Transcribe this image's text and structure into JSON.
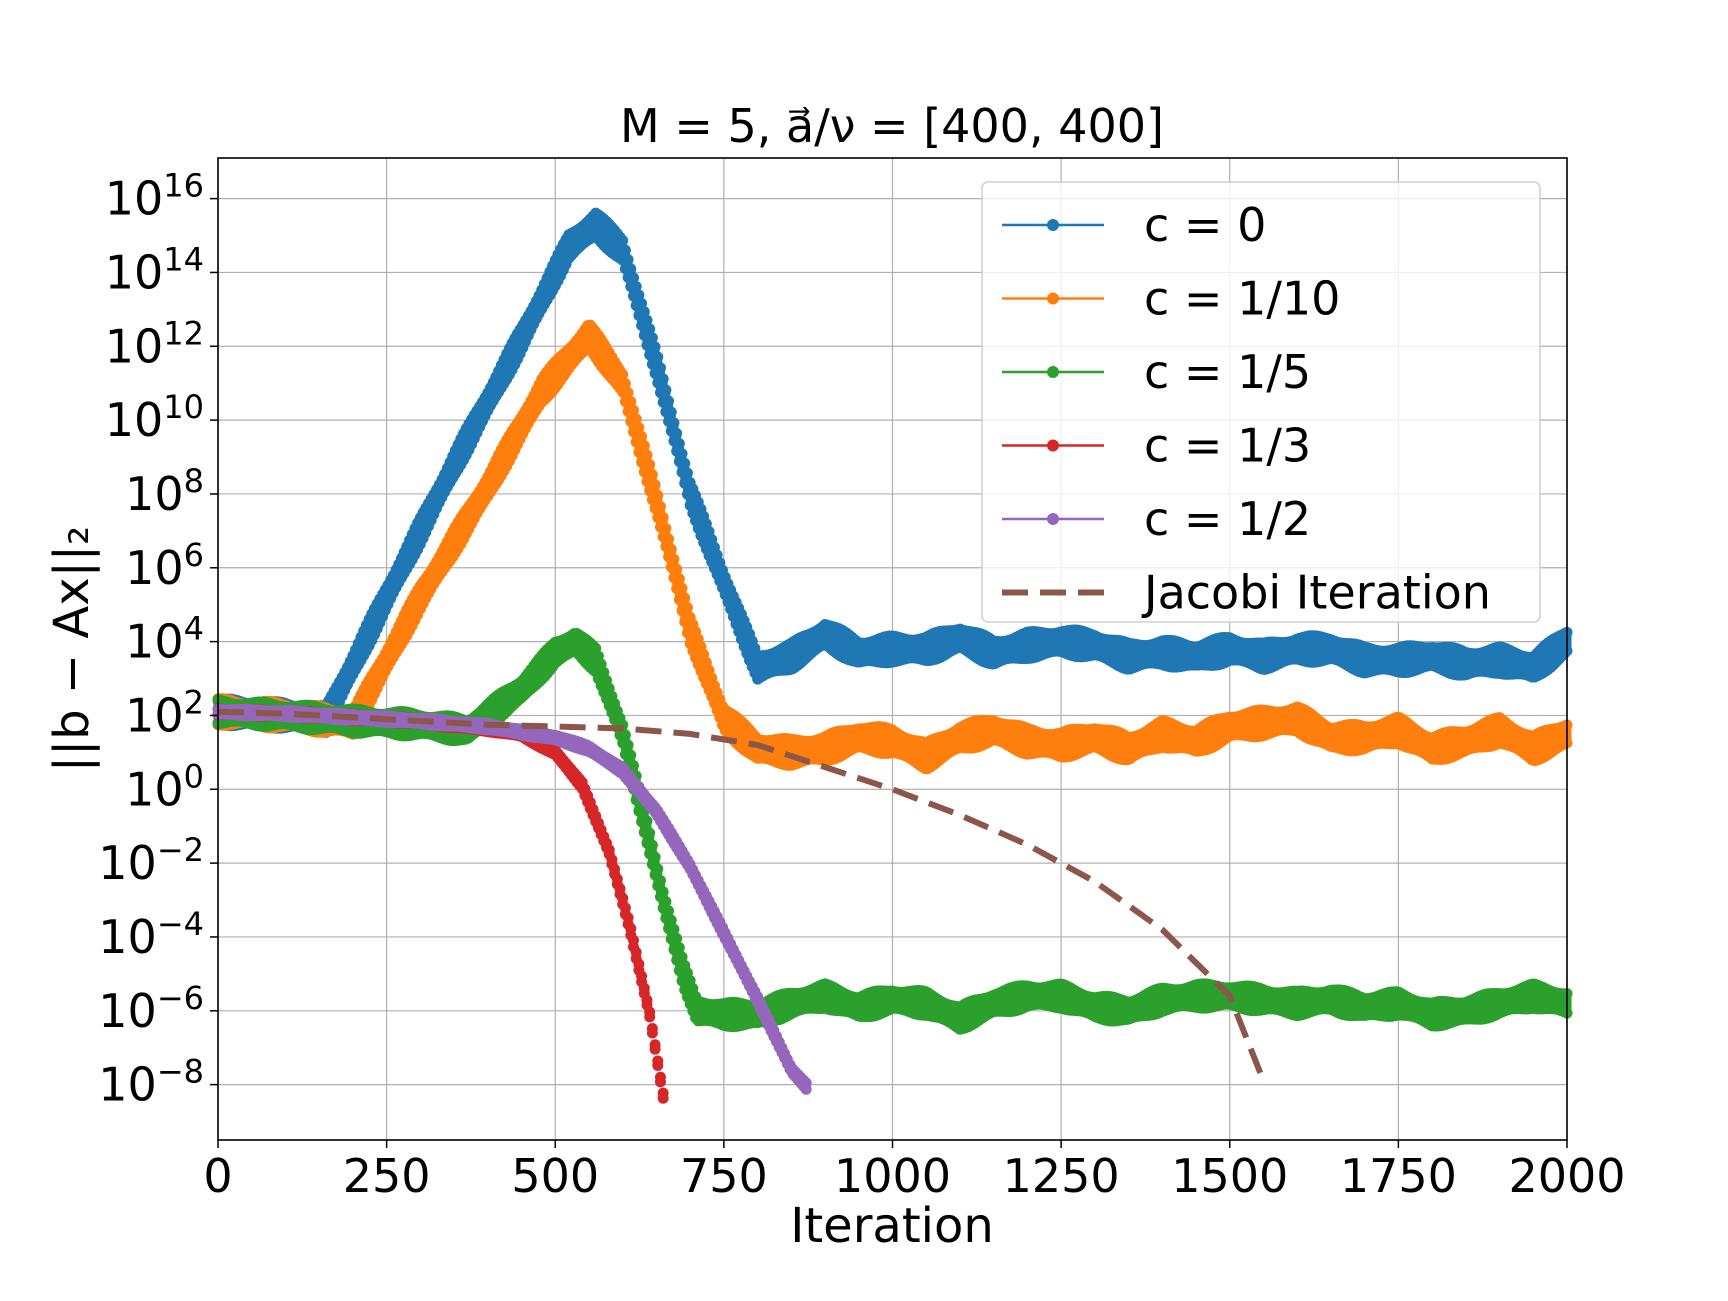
{
  "chart_data": {
    "type": "line",
    "title": "M = 5, a⃗/ν = [400, 400]",
    "xlabel": "Iteration",
    "ylabel": "||b − Ax||₂",
    "xlim": [
      0,
      2000
    ],
    "ylim_exponent": [
      -9.5,
      17.1
    ],
    "y_scale": "log",
    "grid": true,
    "legend_position": "top-right",
    "x_ticks": [
      "0",
      "250",
      "500",
      "750",
      "1000",
      "1250",
      "1500",
      "1750",
      "2000"
    ],
    "y_ticks": [
      {
        "base": "10",
        "exp": "16"
      },
      {
        "base": "10",
        "exp": "14"
      },
      {
        "base": "10",
        "exp": "12"
      },
      {
        "base": "10",
        "exp": "10"
      },
      {
        "base": "10",
        "exp": "8"
      },
      {
        "base": "10",
        "exp": "6"
      },
      {
        "base": "10",
        "exp": "4"
      },
      {
        "base": "10",
        "exp": "2"
      },
      {
        "base": "10",
        "exp": "0"
      },
      {
        "base": "10",
        "exp": "−2"
      },
      {
        "base": "10",
        "exp": "−4"
      },
      {
        "base": "10",
        "exp": "−6"
      },
      {
        "base": "10",
        "exp": "−8"
      }
    ],
    "series": [
      {
        "name": "c = 0",
        "color": "#1f77b4",
        "style": "markers",
        "band_log10": 0.6,
        "points": [
          [
            0,
            2.1
          ],
          [
            100,
            2.0
          ],
          [
            160,
            1.9
          ],
          [
            250,
            5.2
          ],
          [
            350,
            8.8
          ],
          [
            450,
            12.2
          ],
          [
            520,
            14.7
          ],
          [
            560,
            15.3
          ],
          [
            600,
            14.6
          ],
          [
            650,
            11.5
          ],
          [
            700,
            8.0
          ],
          [
            750,
            5.6
          ],
          [
            800,
            3.3
          ],
          [
            850,
            3.6
          ],
          [
            900,
            4.2
          ],
          [
            950,
            3.7
          ],
          [
            1000,
            3.8
          ],
          [
            1050,
            3.8
          ],
          [
            1100,
            4.1
          ],
          [
            1150,
            3.7
          ],
          [
            1200,
            3.9
          ],
          [
            1250,
            4.0
          ],
          [
            1300,
            3.9
          ],
          [
            1350,
            3.6
          ],
          [
            1400,
            3.7
          ],
          [
            1450,
            3.6
          ],
          [
            1500,
            3.8
          ],
          [
            1550,
            3.6
          ],
          [
            1600,
            3.8
          ],
          [
            1650,
            3.8
          ],
          [
            1700,
            3.5
          ],
          [
            1750,
            3.5
          ],
          [
            1800,
            3.6
          ],
          [
            1850,
            3.4
          ],
          [
            1900,
            3.5
          ],
          [
            1950,
            3.3
          ],
          [
            2000,
            4.0
          ]
        ]
      },
      {
        "name": "c = 1/10",
        "color": "#ff7f0e",
        "style": "markers",
        "band_log10": 0.6,
        "points": [
          [
            0,
            2.1
          ],
          [
            100,
            2.0
          ],
          [
            200,
            1.8
          ],
          [
            300,
            5.2
          ],
          [
            400,
            8.2
          ],
          [
            480,
            10.8
          ],
          [
            550,
            12.3
          ],
          [
            600,
            11.0
          ],
          [
            650,
            7.8
          ],
          [
            700,
            4.3
          ],
          [
            750,
            1.9
          ],
          [
            800,
            1.1
          ],
          [
            850,
            1.0
          ],
          [
            900,
            1.1
          ],
          [
            950,
            1.4
          ],
          [
            1000,
            1.3
          ],
          [
            1050,
            0.9
          ],
          [
            1100,
            1.4
          ],
          [
            1150,
            1.6
          ],
          [
            1200,
            1.3
          ],
          [
            1250,
            1.2
          ],
          [
            1300,
            1.4
          ],
          [
            1350,
            1.1
          ],
          [
            1400,
            1.5
          ],
          [
            1450,
            1.3
          ],
          [
            1500,
            1.7
          ],
          [
            1550,
            1.8
          ],
          [
            1600,
            1.9
          ],
          [
            1650,
            1.4
          ],
          [
            1700,
            1.4
          ],
          [
            1750,
            1.6
          ],
          [
            1800,
            1.1
          ],
          [
            1850,
            1.3
          ],
          [
            1900,
            1.6
          ],
          [
            1950,
            1.1
          ],
          [
            2000,
            1.5
          ]
        ]
      },
      {
        "name": "c = 1/5",
        "color": "#2ca02c",
        "style": "markers",
        "band_log10": 0.55,
        "points": [
          [
            0,
            2.1
          ],
          [
            100,
            2.0
          ],
          [
            200,
            1.85
          ],
          [
            300,
            1.75
          ],
          [
            370,
            1.6
          ],
          [
            450,
            2.7
          ],
          [
            500,
            3.7
          ],
          [
            530,
            4.0
          ],
          [
            560,
            3.5
          ],
          [
            600,
            1.5
          ],
          [
            630,
            -0.7
          ],
          [
            660,
            -3.0
          ],
          [
            690,
            -5.0
          ],
          [
            710,
            -6.0
          ],
          [
            750,
            -6.1
          ],
          [
            800,
            -6.1
          ],
          [
            850,
            -5.8
          ],
          [
            900,
            -5.6
          ],
          [
            950,
            -5.9
          ],
          [
            1000,
            -5.7
          ],
          [
            1050,
            -5.8
          ],
          [
            1100,
            -6.2
          ],
          [
            1150,
            -5.8
          ],
          [
            1200,
            -5.6
          ],
          [
            1250,
            -5.6
          ],
          [
            1300,
            -5.9
          ],
          [
            1350,
            -6.0
          ],
          [
            1400,
            -5.7
          ],
          [
            1450,
            -5.6
          ],
          [
            1500,
            -5.6
          ],
          [
            1550,
            -5.7
          ],
          [
            1600,
            -5.8
          ],
          [
            1650,
            -5.7
          ],
          [
            1700,
            -5.9
          ],
          [
            1750,
            -5.8
          ],
          [
            1800,
            -6.1
          ],
          [
            1850,
            -6.0
          ],
          [
            1900,
            -5.8
          ],
          [
            1950,
            -5.6
          ],
          [
            2000,
            -5.8
          ]
        ]
      },
      {
        "name": "c = 1/3",
        "color": "#d62728",
        "style": "markers",
        "band_log10": 0.15,
        "points": [
          [
            0,
            2.1
          ],
          [
            100,
            2.05
          ],
          [
            200,
            1.95
          ],
          [
            300,
            1.85
          ],
          [
            400,
            1.65
          ],
          [
            450,
            1.5
          ],
          [
            500,
            1.0
          ],
          [
            540,
            0.1
          ],
          [
            580,
            -1.7
          ],
          [
            610,
            -3.7
          ],
          [
            640,
            -6.1
          ],
          [
            660,
            -8.3
          ]
        ]
      },
      {
        "name": "c = 1/2",
        "color": "#9467bd",
        "style": "markers",
        "band_log10": 0.15,
        "points": [
          [
            0,
            2.1
          ],
          [
            100,
            2.05
          ],
          [
            200,
            1.95
          ],
          [
            300,
            1.85
          ],
          [
            400,
            1.7
          ],
          [
            450,
            1.55
          ],
          [
            500,
            1.4
          ],
          [
            550,
            1.1
          ],
          [
            600,
            0.5
          ],
          [
            650,
            -0.6
          ],
          [
            700,
            -2.1
          ],
          [
            750,
            -3.9
          ],
          [
            800,
            -5.7
          ],
          [
            850,
            -7.6
          ],
          [
            875,
            -8.1
          ]
        ]
      },
      {
        "name": "Jacobi Iteration",
        "color": "#8c564b",
        "style": "dashed",
        "points": [
          [
            0,
            2.1
          ],
          [
            100,
            2.05
          ],
          [
            200,
            1.95
          ],
          [
            300,
            1.85
          ],
          [
            400,
            1.75
          ],
          [
            500,
            1.7
          ],
          [
            600,
            1.65
          ],
          [
            700,
            1.5
          ],
          [
            800,
            1.2
          ],
          [
            900,
            0.6
          ],
          [
            1000,
            0.0
          ],
          [
            1100,
            -0.7
          ],
          [
            1200,
            -1.5
          ],
          [
            1300,
            -2.5
          ],
          [
            1400,
            -3.8
          ],
          [
            1500,
            -5.6
          ],
          [
            1550,
            -7.9
          ]
        ]
      }
    ]
  }
}
